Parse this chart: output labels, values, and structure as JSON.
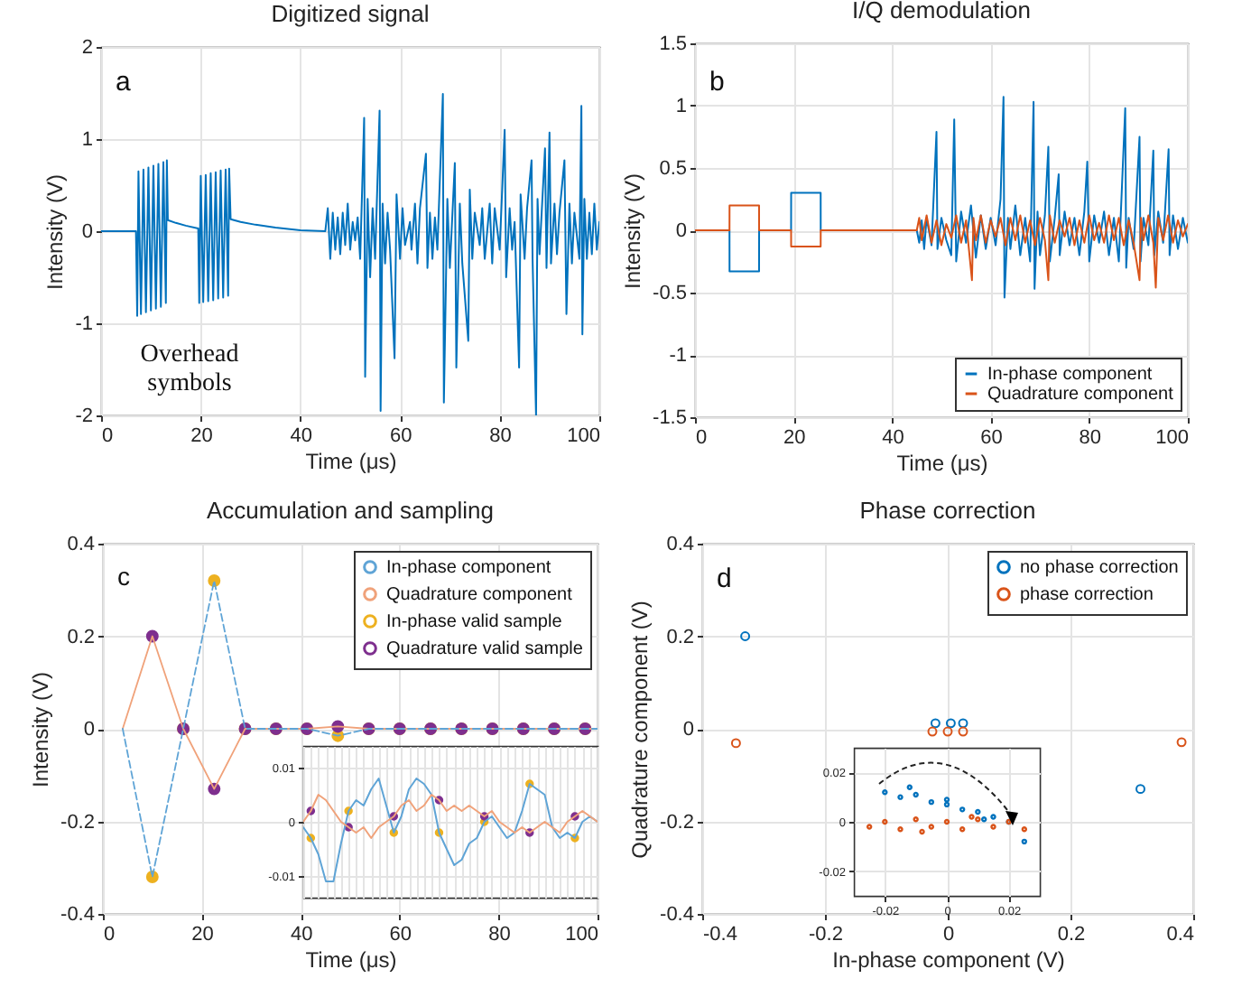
{
  "chart_data": [
    {
      "type": "line",
      "title": "Digitized signal",
      "xlabel": "Time (μs)",
      "ylabel": "Intensity (V)",
      "annotations": [
        "a",
        "Overhead symbols"
      ],
      "xlim": [
        0,
        100
      ],
      "xticks": [
        0,
        20,
        40,
        60,
        80,
        100
      ],
      "ylim": [
        -2,
        2
      ],
      "yticks": [
        -2,
        -1,
        0,
        1,
        2
      ],
      "grid": true,
      "series": [
        {
          "color": "#0072bd",
          "x": [
            0,
            7,
            7.25,
            7.5,
            8,
            8.5,
            9,
            9.5,
            10,
            10.5,
            11,
            11.5,
            12,
            12.5,
            13,
            13.2,
            13.4,
            15,
            17,
            19.5,
            19.7,
            20,
            20.5,
            21,
            21.5,
            22,
            22.5,
            23,
            23.5,
            24,
            24.5,
            25,
            25.5,
            25.7,
            26,
            28,
            31,
            35,
            40,
            45,
            45.5,
            46,
            46.5,
            47,
            47.5,
            48,
            48.5,
            49,
            49.5,
            50,
            50.5,
            51,
            51.5,
            52,
            52.8,
            53,
            53.5,
            54,
            54.5,
            55,
            55.9,
            56.1,
            56.5,
            57,
            57.5,
            58,
            58.9,
            59.3,
            60,
            60.5,
            61,
            62,
            62.3,
            63,
            63.5,
            64,
            65.2,
            65.5,
            66,
            66.5,
            67,
            67.5,
            68.6,
            68.8,
            69.5,
            70,
            71,
            71.3,
            72,
            72.5,
            73.7,
            74,
            74.5,
            75,
            76,
            76.5,
            77,
            78,
            78.5,
            79,
            80,
            81,
            81.3,
            82,
            82.5,
            83,
            83.9,
            84.2,
            85,
            85.5,
            86.4,
            86.6,
            87.3,
            87.6,
            88,
            89.1,
            89.4,
            90,
            90.3,
            91,
            91.5,
            92,
            93,
            93.4,
            94,
            94.5,
            95,
            96,
            96.4,
            96.6,
            97,
            97.5,
            98,
            98.5,
            99,
            99.5,
            100
          ],
          "values": [
            0,
            0,
            -0.92,
            0.65,
            -0.9,
            0.67,
            -0.88,
            0.69,
            -0.86,
            0.71,
            -0.84,
            0.73,
            -0.82,
            0.75,
            -0.78,
            0.77,
            0.12,
            0.09,
            0.06,
            0.03,
            -0.78,
            0.6,
            -0.77,
            0.61,
            -0.76,
            0.63,
            -0.75,
            0.64,
            -0.73,
            0.66,
            -0.72,
            0.67,
            -0.7,
            0.68,
            0.13,
            0.1,
            0.07,
            0.04,
            0.01,
            0,
            0.25,
            -0.3,
            0.2,
            -0.2,
            0.15,
            -0.25,
            0.2,
            -0.15,
            0.3,
            -0.2,
            0.1,
            -0.1,
            0.15,
            -0.3,
            1.23,
            -1.58,
            0.35,
            -0.5,
            0.25,
            -0.3,
            1.31,
            -1.95,
            0.3,
            -0.35,
            0.2,
            -0.2,
            -1.38,
            0.4,
            -0.3,
            0.25,
            -0.15,
            0.1,
            -0.2,
            0.3,
            -0.35,
            0.25,
            0.84,
            -0.4,
            0.2,
            -0.3,
            0.15,
            -0.2,
            1.49,
            -1.86,
            0.35,
            -0.4,
            0.74,
            -1.48,
            0.3,
            -0.35,
            -1.19,
            0.45,
            -0.3,
            0.2,
            -0.15,
            0.25,
            -0.3,
            0.3,
            -0.35,
            0.25,
            -0.2,
            1.1,
            -0.5,
            0.25,
            -0.2,
            0.1,
            -1.48,
            0.4,
            -0.3,
            0.25,
            0.77,
            -0.3,
            -2,
            0.35,
            -0.25,
            0.9,
            -0.4,
            1.07,
            -0.35,
            0.3,
            -0.25,
            0.2,
            0.77,
            -0.9,
            0.3,
            -0.35,
            0.2,
            -0.3,
            1.36,
            -1.12,
            0.35,
            -0.3,
            0.2,
            -0.25,
            0.3,
            -0.2,
            0.1
          ]
        }
      ]
    },
    {
      "type": "line",
      "title": "I/Q demodulation",
      "xlabel": "Time (μs)",
      "ylabel": "Intensity (V)",
      "annotations": [
        "b"
      ],
      "xlim": [
        0,
        100
      ],
      "xticks": [
        0,
        20,
        40,
        60,
        80,
        100
      ],
      "ylim": [
        -1.5,
        1.5
      ],
      "yticks": [
        -1.5,
        -1,
        -0.5,
        0,
        0.5,
        1,
        1.5
      ],
      "grid": true,
      "legend": "bottom right",
      "series": [
        {
          "name": "In-phase component",
          "color": "#0072bd",
          "x": [
            0,
            7,
            7.01,
            13,
            13.01,
            19.5,
            19.51,
            25.5,
            25.51,
            45,
            45.5,
            46,
            46.5,
            47,
            48,
            49,
            49.2,
            50,
            51,
            52,
            52.6,
            53,
            54,
            55,
            56,
            57,
            58,
            59,
            60,
            61,
            62,
            62.6,
            62.8,
            63.5,
            64,
            65,
            66,
            67,
            68,
            68.7,
            68.9,
            69.5,
            70,
            71,
            71.7,
            72,
            73,
            73.8,
            74,
            75,
            76,
            77,
            78,
            79,
            79.6,
            80,
            81,
            82,
            83,
            84,
            85,
            86,
            87.3,
            87.5,
            88,
            89,
            90.2,
            90.4,
            91,
            92,
            93,
            93.2,
            94,
            95,
            96.1,
            96.3,
            97,
            98,
            99,
            100
          ],
          "values": [
            0,
            0,
            -0.33,
            -0.33,
            0,
            0,
            0.3,
            0.3,
            0,
            0,
            -0.1,
            0.08,
            -0.15,
            0.1,
            -0.12,
            0.79,
            -0.15,
            0.1,
            -0.08,
            -0.2,
            0.89,
            -0.25,
            0.15,
            -0.1,
            0.2,
            -0.22,
            0.12,
            -0.15,
            0.1,
            -0.12,
            0.25,
            1.07,
            -0.54,
            0.1,
            -0.15,
            0.2,
            -0.2,
            0.1,
            -0.25,
            1.03,
            -0.47,
            0.15,
            -0.2,
            0.12,
            0.67,
            -0.25,
            0.1,
            0.45,
            -0.2,
            0.15,
            -0.12,
            0.1,
            -0.2,
            0.15,
            0.55,
            -0.25,
            0.12,
            -0.1,
            0.15,
            -0.2,
            0.1,
            -0.25,
            0.98,
            -0.3,
            0.1,
            -0.15,
            0.75,
            -0.25,
            0.1,
            -0.12,
            0.64,
            -0.2,
            0.15,
            -0.1,
            0.65,
            -0.2,
            0.12,
            -0.15,
            0.1,
            -0.1
          ]
        },
        {
          "name": "Quadrature component",
          "color": "#d95319",
          "x": [
            0,
            7,
            7.01,
            13,
            13.01,
            19.5,
            19.51,
            25.5,
            25.51,
            45,
            45.5,
            46,
            47,
            48,
            49,
            50,
            51,
            52,
            53,
            54,
            55,
            56.2,
            56.5,
            57,
            58,
            59,
            60,
            61,
            62,
            63,
            64,
            65,
            66,
            67,
            68,
            69,
            70,
            71,
            71.7,
            72,
            73,
            74,
            75,
            76,
            77,
            78,
            79,
            80,
            81,
            82,
            83,
            84,
            85,
            86,
            87,
            88,
            89,
            90.2,
            90.5,
            91,
            92,
            93,
            93.5,
            94,
            95,
            96,
            97,
            98,
            99,
            100
          ],
          "values": [
            0,
            0,
            0.2,
            0.2,
            0,
            0,
            -0.13,
            -0.13,
            0,
            0,
            0.1,
            -0.08,
            0.12,
            -0.1,
            0.08,
            -0.12,
            0.05,
            -0.06,
            0.12,
            -0.1,
            0.08,
            -0.4,
            0.1,
            -0.08,
            0.12,
            -0.1,
            0.08,
            -0.05,
            0.1,
            -0.12,
            0.1,
            -0.08,
            0.12,
            -0.1,
            0.08,
            -0.12,
            0.1,
            -0.08,
            -0.4,
            0.12,
            -0.1,
            0.08,
            -0.05,
            0.1,
            -0.12,
            0.08,
            -0.1,
            0.12,
            -0.08,
            0.06,
            -0.1,
            0.12,
            -0.08,
            0.1,
            -0.12,
            0.08,
            -0.1,
            -0.4,
            0.1,
            -0.08,
            0.12,
            -0.1,
            -0.46,
            0.1,
            -0.08,
            0.12,
            -0.1,
            0.08,
            -0.05,
            0.05
          ]
        }
      ]
    },
    {
      "type": "line",
      "title": "Accumulation and sampling",
      "xlabel": "Time (μs)",
      "ylabel": "Intensity (V)",
      "annotations": [
        "c"
      ],
      "xlim": [
        0,
        100
      ],
      "xticks": [
        0,
        20,
        40,
        60,
        80,
        100
      ],
      "ylim": [
        -0.4,
        0.4
      ],
      "yticks": [
        -0.4,
        -0.2,
        0,
        0.2,
        0.4
      ],
      "grid": true,
      "legend": "top right",
      "series": [
        {
          "name": "In-phase component",
          "color": "#5fa4d6",
          "line_style": "dashed",
          "x": [
            4,
            10,
            16.25,
            22.5,
            28.75,
            35,
            41.25,
            47.5,
            53.75,
            60,
            66.25,
            72.5,
            78.75,
            85,
            91.25,
            97.5,
            100
          ],
          "values": [
            0,
            -0.32,
            0,
            0.32,
            0,
            0,
            0,
            -0.015,
            0,
            0,
            0,
            0,
            0,
            0,
            0,
            0,
            0
          ]
        },
        {
          "name": "Quadrature component",
          "color": "#f0a27a",
          "x": [
            4,
            10,
            16.25,
            22.5,
            28.75,
            35,
            41.25,
            47.5,
            53.75,
            60,
            66.25,
            72.5,
            78.75,
            85,
            91.25,
            97.5,
            100
          ],
          "values": [
            0,
            0.2,
            0,
            -0.13,
            0,
            0,
            0,
            0.005,
            0,
            0,
            0,
            0,
            0,
            0,
            0,
            0,
            0
          ]
        },
        {
          "name": "In-phase valid sample",
          "type": "scatter",
          "color": "#edb120",
          "x": [
            10,
            16.25,
            22.5,
            28.75,
            35,
            41.25,
            47.5,
            53.75,
            60,
            66.25,
            72.5,
            78.75,
            85,
            91.25,
            97.5
          ],
          "values": [
            -0.32,
            0,
            0.32,
            0,
            0,
            0,
            -0.015,
            0,
            0,
            0,
            0,
            0,
            0,
            0,
            0
          ]
        },
        {
          "name": "Quadrature valid sample",
          "type": "scatter",
          "color": "#7e2f8e",
          "x": [
            10,
            16.25,
            22.5,
            28.75,
            35,
            41.25,
            47.5,
            53.75,
            60,
            66.25,
            72.5,
            78.75,
            85,
            91.25,
            97.5
          ],
          "values": [
            0.2,
            0,
            -0.13,
            0,
            0,
            0,
            0.005,
            0,
            0,
            0,
            0,
            0,
            0,
            0,
            0
          ]
        }
      ]
    },
    {
      "type": "line",
      "categories": [
        null,
        null,
        null,
        null,
        null,
        null,
        null,
        null,
        null,
        null,
        null,
        null,
        null,
        null,
        null,
        null,
        null,
        null,
        null,
        null,
        null,
        null,
        null,
        null,
        null,
        null,
        null,
        null,
        null,
        null,
        null,
        null,
        null,
        null,
        null,
        null,
        null,
        null,
        null,
        null
      ],
      "ylim": [
        -0.014,
        0.014
      ],
      "yticks": [
        -0.01,
        0,
        0.01
      ],
      "grid": true,
      "tick_labels": "y",
      "series": [
        {
          "color": "#5fa4d6",
          "values": [
            -0.001,
            -0.003,
            -0.006,
            -0.011,
            -0.011,
            -0.004,
            0.002,
            0.004,
            0.003,
            0.006,
            0.008,
            0.003,
            -0.002,
            0.001,
            0.006,
            0.008,
            0.007,
            0.005,
            -0.002,
            -0.005,
            -0.008,
            -0.007,
            -0.004,
            -0.003,
            0,
            0.001,
            -0.001,
            -0.003,
            -0.002,
            0.002,
            0.007,
            0.006,
            0.005,
            -0.001,
            -0.003,
            -0.002,
            -0.003,
            0,
            0.001,
            0
          ]
        },
        {
          "color": "#f0a27a",
          "values": [
            0,
            0.002,
            0.005,
            0.004,
            0.002,
            0,
            -0.001,
            -0.002,
            -0.001,
            -0.003,
            -0.001,
            0,
            0.001,
            0.003,
            0.004,
            0.002,
            0.003,
            0.005,
            0.004,
            0.002,
            0.003,
            0.002,
            0.003,
            0.002,
            0.001,
            0.002,
            0,
            -0.001,
            -0.002,
            -0.001,
            -0.002,
            -0.001,
            0,
            -0.001,
            -0.002,
            0,
            0.001,
            0.002,
            0.001,
            0
          ]
        },
        {
          "type": "scatter",
          "color": "#edb120",
          "values": [
            null,
            -0.003,
            null,
            null,
            null,
            null,
            0.002,
            null,
            null,
            null,
            null,
            null,
            -0.002,
            null,
            null,
            null,
            null,
            null,
            -0.002,
            null,
            null,
            null,
            null,
            null,
            0,
            null,
            null,
            null,
            null,
            null,
            0.007,
            null,
            null,
            null,
            null,
            null,
            -0.003,
            null,
            null,
            null
          ]
        },
        {
          "type": "scatter",
          "color": "#7e2f8e",
          "values": [
            null,
            0.002,
            null,
            null,
            null,
            null,
            -0.001,
            null,
            null,
            null,
            null,
            null,
            0.001,
            null,
            null,
            null,
            null,
            null,
            0.004,
            null,
            null,
            null,
            null,
            null,
            0.001,
            null,
            null,
            null,
            null,
            null,
            -0.002,
            null,
            null,
            null,
            null,
            null,
            0.001,
            null,
            null,
            null
          ]
        }
      ]
    },
    {
      "type": "scatter",
      "title": "Phase correction",
      "xlabel": "In-phase component (V)",
      "ylabel": "Quadrature component (V)",
      "annotations": [
        "d"
      ],
      "xlim": [
        -0.4,
        0.4
      ],
      "xticks": [
        -0.4,
        -0.2,
        0,
        0.2,
        0.4
      ],
      "ylim": [
        -0.4,
        0.4
      ],
      "yticks": [
        -0.4,
        -0.2,
        0,
        0.2,
        0.4
      ],
      "grid": true,
      "legend": "top right",
      "marker": "circle",
      "series": [
        {
          "name": "no phase correction",
          "color": "#0072bd",
          "x": [
            -0.33,
            0.314,
            -0.02,
            0.005,
            0.025
          ],
          "values": [
            0.2,
            -0.13,
            0.012,
            0.012,
            0.012
          ]
        },
        {
          "name": "phase correction",
          "color": "#d95319",
          "x": [
            -0.345,
            0.381,
            -0.025,
            0,
            0.025
          ],
          "values": [
            -0.031,
            -0.029,
            -0.006,
            -0.006,
            -0.006
          ]
        }
      ]
    },
    {
      "type": "scatter",
      "xlim": [
        -0.03,
        0.03
      ],
      "xticks": [
        -0.02,
        0,
        0.02
      ],
      "ylim": [
        -0.03,
        0.03
      ],
      "yticks": [
        -0.02,
        0,
        0.02
      ],
      "grid": true,
      "marker": "circle",
      "series": [
        {
          "color": "#0072bd",
          "x": [
            -0.02,
            -0.015,
            -0.01,
            -0.005,
            0,
            0.005,
            0.01,
            0.015,
            0.02,
            0.025,
            -0.012,
            0,
            0.012
          ],
          "values": [
            0.012,
            0.01,
            0.011,
            0.008,
            0.007,
            0.005,
            0.004,
            0.002,
            0,
            -0.008,
            0.014,
            0.009,
            0.001
          ]
        },
        {
          "color": "#d95319",
          "x": [
            -0.025,
            -0.02,
            -0.015,
            -0.01,
            -0.005,
            0,
            0.005,
            0.01,
            0.015,
            0.02,
            0.025,
            -0.008,
            0.008
          ],
          "values": [
            -0.002,
            0,
            -0.003,
            0.001,
            -0.002,
            0,
            -0.003,
            0.001,
            -0.002,
            0,
            -0.003,
            -0.004,
            0.002
          ]
        }
      ]
    }
  ]
}
